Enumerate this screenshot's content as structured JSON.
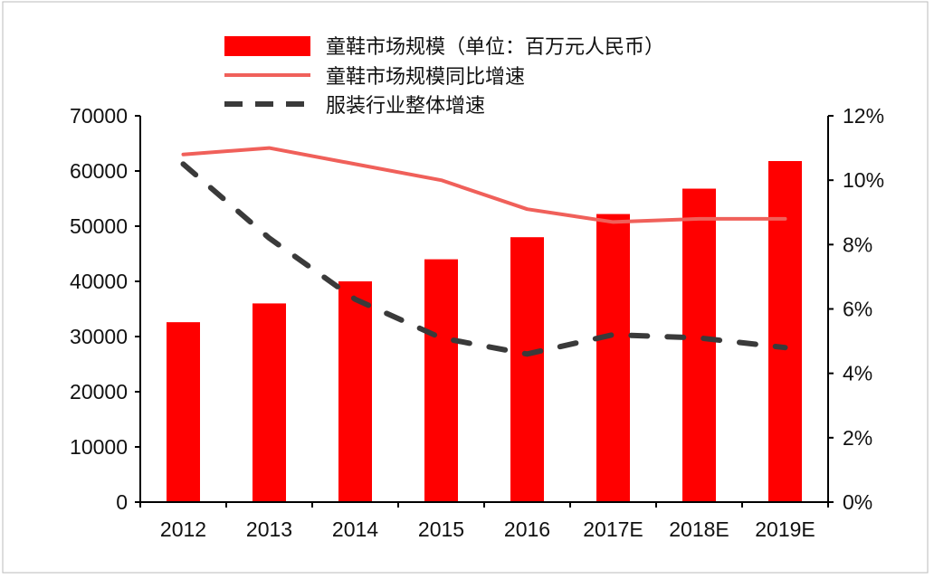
{
  "chart_data": {
    "type": "bar+line",
    "categories": [
      "2012",
      "2013",
      "2014",
      "2015",
      "2016",
      "2017E",
      "2018E",
      "2019E"
    ],
    "series": [
      {
        "name": "童鞋市场规模（单位：百万元人民币）",
        "type": "bar",
        "axis": "left",
        "color": "#ff0000",
        "values": [
          32600,
          36000,
          40000,
          44000,
          48000,
          52200,
          56800,
          61800
        ]
      },
      {
        "name": "童鞋市场规模同比增速",
        "type": "line",
        "axis": "right",
        "color": "#f0605a",
        "style": "solid",
        "values": [
          10.8,
          11.0,
          10.5,
          10.0,
          9.1,
          8.7,
          8.8,
          8.8
        ]
      },
      {
        "name": "服装行业整体增速",
        "type": "line",
        "axis": "right",
        "color": "#3a3a3a",
        "style": "dashed",
        "values": [
          10.5,
          8.2,
          6.3,
          5.1,
          4.6,
          5.2,
          5.1,
          4.8
        ]
      }
    ],
    "left_axis": {
      "ylim": [
        0,
        70000
      ],
      "ticks": [
        "0",
        "10000",
        "20000",
        "30000",
        "40000",
        "50000",
        "60000",
        "70000"
      ]
    },
    "right_axis": {
      "ylim": [
        0,
        12
      ],
      "ticks": [
        "0%",
        "2%",
        "4%",
        "6%",
        "8%",
        "10%",
        "12%"
      ]
    },
    "grid": false,
    "legend": "top"
  }
}
